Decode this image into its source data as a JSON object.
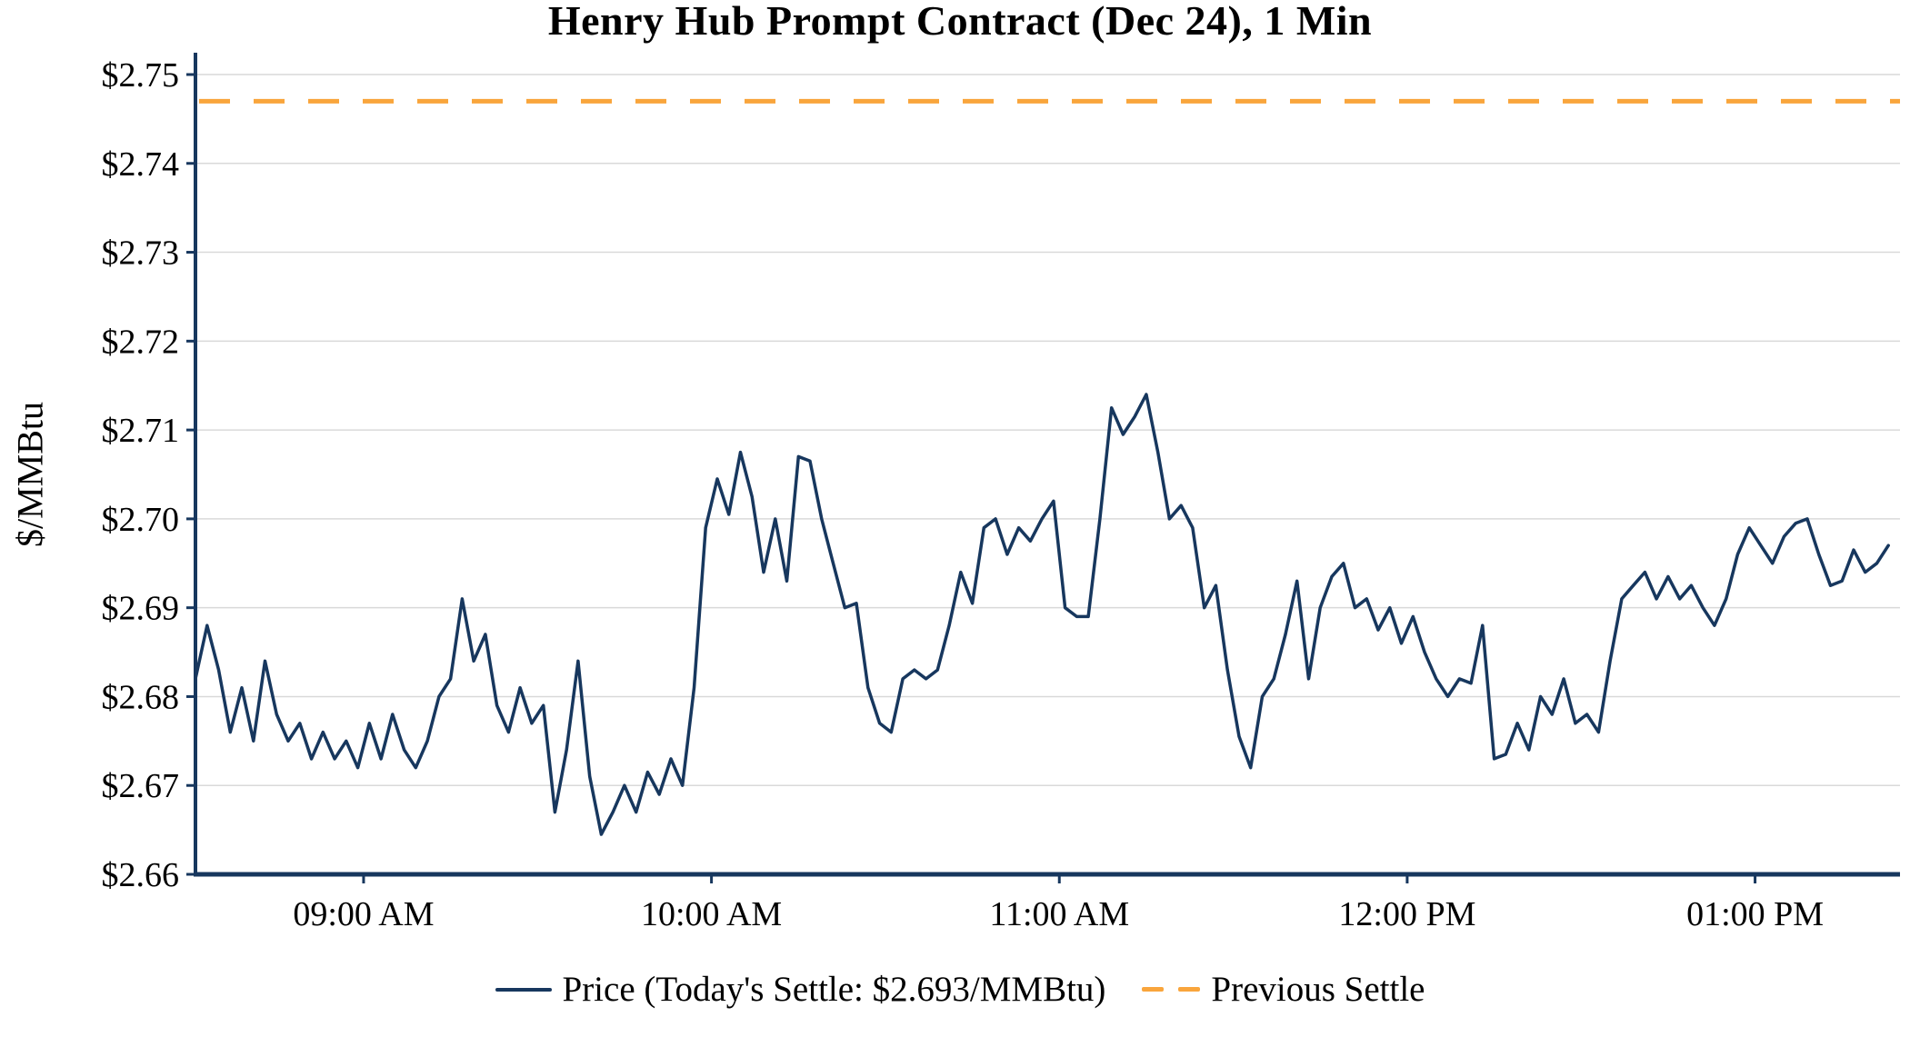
{
  "chart": {
    "title": "Henry Hub Prompt Contract (Dec 24), 1 Min",
    "ylabel": "$/MMBtu",
    "legend": {
      "price_label": "Price (Today's Settle: $2.693/MMBtu)",
      "settle_label": "Previous Settle"
    },
    "colors": {
      "price": "#17375E",
      "previous_settle": "#F9A53C",
      "grid": "#D9D9D9",
      "axis": "#17375E",
      "text": "#000000"
    }
  },
  "chart_data": {
    "type": "line",
    "title": "Henry Hub Prompt Contract (Dec 24), 1 Min",
    "xlabel": "",
    "ylabel": "$/MMBtu",
    "ylim": [
      2.66,
      2.75
    ],
    "yticks": [
      2.66,
      2.67,
      2.68,
      2.69,
      2.7,
      2.71,
      2.72,
      2.73,
      2.74,
      2.75
    ],
    "ytick_labels": [
      "$2.66",
      "$2.67",
      "$2.68",
      "$2.69",
      "$2.70",
      "$2.71",
      "$2.72",
      "$2.73",
      "$2.74",
      "$2.75"
    ],
    "x_unit": "minutes_since_midnight",
    "xlim": [
      511,
      805
    ],
    "xticks": [
      540,
      600,
      660,
      720,
      780
    ],
    "xtick_labels": [
      "09:00 AM",
      "10:00 AM",
      "11:00 AM",
      "12:00 PM",
      "01:00 PM"
    ],
    "grid": "horizontal",
    "legend_position": "bottom",
    "previous_settle": 2.747,
    "todays_settle": 2.693,
    "series": [
      {
        "name": "Price",
        "x_start": 511,
        "x_step": 2,
        "values": [
          2.682,
          2.688,
          2.683,
          2.676,
          2.681,
          2.675,
          2.684,
          2.678,
          2.675,
          2.677,
          2.673,
          2.676,
          2.673,
          2.675,
          2.672,
          2.677,
          2.673,
          2.678,
          2.674,
          2.672,
          2.675,
          2.68,
          2.682,
          2.691,
          2.684,
          2.687,
          2.679,
          2.676,
          2.681,
          2.677,
          2.679,
          2.667,
          2.674,
          2.684,
          2.671,
          2.6645,
          2.667,
          2.67,
          2.667,
          2.6715,
          2.669,
          2.673,
          2.67,
          2.681,
          2.699,
          2.7045,
          2.7005,
          2.7075,
          2.7025,
          2.694,
          2.7,
          2.693,
          2.707,
          2.7065,
          2.7,
          2.695,
          2.69,
          2.6905,
          2.681,
          2.677,
          2.676,
          2.682,
          2.683,
          2.682,
          2.683,
          2.688,
          2.694,
          2.6905,
          2.699,
          2.7,
          2.696,
          2.699,
          2.6975,
          2.7,
          2.702,
          2.69,
          2.689,
          2.689,
          2.7,
          2.7125,
          2.7095,
          2.7115,
          2.714,
          2.7075,
          2.7,
          2.7015,
          2.699,
          2.69,
          2.6925,
          2.683,
          2.6755,
          2.672,
          2.68,
          2.682,
          2.687,
          2.693,
          2.682,
          2.69,
          2.6935,
          2.695,
          2.69,
          2.691,
          2.6875,
          2.69,
          2.686,
          2.689,
          2.685,
          2.682,
          2.68,
          2.682,
          2.6815,
          2.688,
          2.673,
          2.6735,
          2.677,
          2.674,
          2.68,
          2.678,
          2.682,
          2.677,
          2.678,
          2.676,
          2.684,
          2.691,
          2.6925,
          2.694,
          2.691,
          2.6935,
          2.691,
          2.6925,
          2.69,
          2.688,
          2.691,
          2.696,
          2.699,
          2.697,
          2.695,
          2.698,
          2.6995,
          2.7,
          2.696,
          2.6925,
          2.693,
          2.6965,
          2.694,
          2.695,
          2.697
        ]
      }
    ]
  }
}
